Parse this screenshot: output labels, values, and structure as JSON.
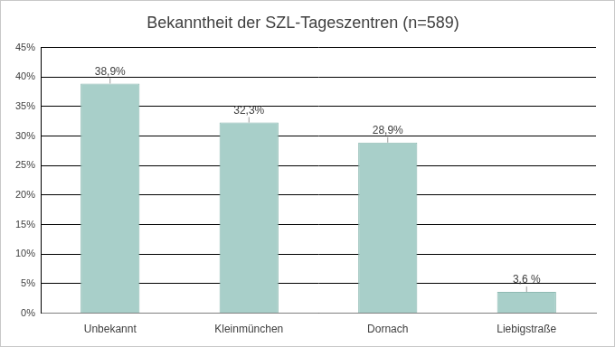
{
  "chart_data": {
    "type": "bar",
    "title": "Bekanntheit der SZL-Tageszentren (n=589)",
    "categories": [
      "Unbekannt",
      "Kleinmünchen",
      "Dornach",
      "Liebigstraße"
    ],
    "values": [
      38.9,
      32.3,
      28.9,
      3.6
    ],
    "value_labels": [
      "38,9%",
      "32,3%",
      "28,9%",
      "3,6 %"
    ],
    "color": "#a8cfc9",
    "ylim": [
      0,
      45
    ],
    "yticks": [
      {
        "value": 0,
        "label": "0%"
      },
      {
        "value": 5,
        "label": "5%"
      },
      {
        "value": 10,
        "label": "10%"
      },
      {
        "value": 15,
        "label": "15%"
      },
      {
        "value": 20,
        "label": "20%"
      },
      {
        "value": 25,
        "label": "25%"
      },
      {
        "value": 30,
        "label": "30%"
      },
      {
        "value": 35,
        "label": "35%"
      },
      {
        "value": 40,
        "label": "40%"
      },
      {
        "value": 45,
        "label": "45%"
      }
    ],
    "grid": true,
    "data_labels": true
  }
}
